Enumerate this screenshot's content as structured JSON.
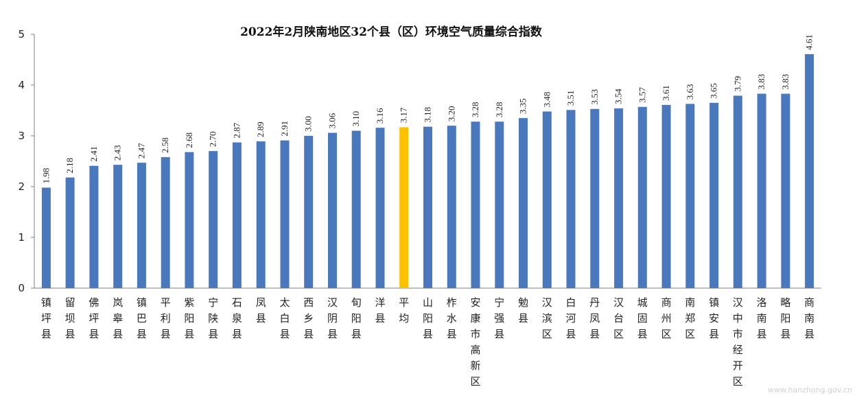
{
  "chart_data": {
    "type": "bar",
    "title": "2022年2月陕南地区32个县（区）环境空气质量综合指数",
    "xlabel": "",
    "ylabel": "",
    "ylim": [
      0,
      5
    ],
    "yticks": [
      "0",
      "1",
      "2",
      "3",
      "4",
      "5"
    ],
    "grid": false,
    "colors": {
      "bar": "#4a78bc",
      "highlight": "#ffc000",
      "axis": "#7f7f7f"
    },
    "highlight_category": "平均",
    "categories": [
      "镇坪县",
      "留坝县",
      "佛坪县",
      "岚皋县",
      "镇巴县",
      "平利县",
      "紫阳县",
      "宁陕县",
      "石泉县",
      "凤县",
      "太白县",
      "西乡县",
      "汉阴县",
      "旬阳县",
      "洋县",
      "平均",
      "山阳县",
      "柞水县",
      "安康市高新区",
      "宁强县",
      "勉县",
      "汉滨区",
      "白河县",
      "丹凤县",
      "汉台区",
      "城固县",
      "商州区",
      "南郑区",
      "镇安县",
      "汉中市经开区",
      "洛南县",
      "略阳县",
      "商南县"
    ],
    "values": [
      1.98,
      2.18,
      2.41,
      2.43,
      2.47,
      2.58,
      2.68,
      2.7,
      2.87,
      2.89,
      2.91,
      3.0,
      3.06,
      3.1,
      3.16,
      3.17,
      3.18,
      3.2,
      3.28,
      3.28,
      3.35,
      3.48,
      3.51,
      3.53,
      3.54,
      3.57,
      3.61,
      3.63,
      3.65,
      3.79,
      3.83,
      3.83,
      4.61
    ],
    "value_labels": [
      "1.98",
      "2.18",
      "2.41",
      "2.43",
      "2.47",
      "2.58",
      "2.68",
      "2.70",
      "2.87",
      "2.89",
      "2.91",
      "3.00",
      "3.06",
      "3.10",
      "3.16",
      "3.17",
      "3.18",
      "3.20",
      "3.28",
      "3.28",
      "3.35",
      "3.48",
      "3.51",
      "3.53",
      "3.54",
      "3.57",
      "3.61",
      "3.63",
      "3.65",
      "3.79",
      "3.83",
      "3.83",
      "4.61"
    ]
  },
  "watermark": "www.hanzhong.gov.cn"
}
